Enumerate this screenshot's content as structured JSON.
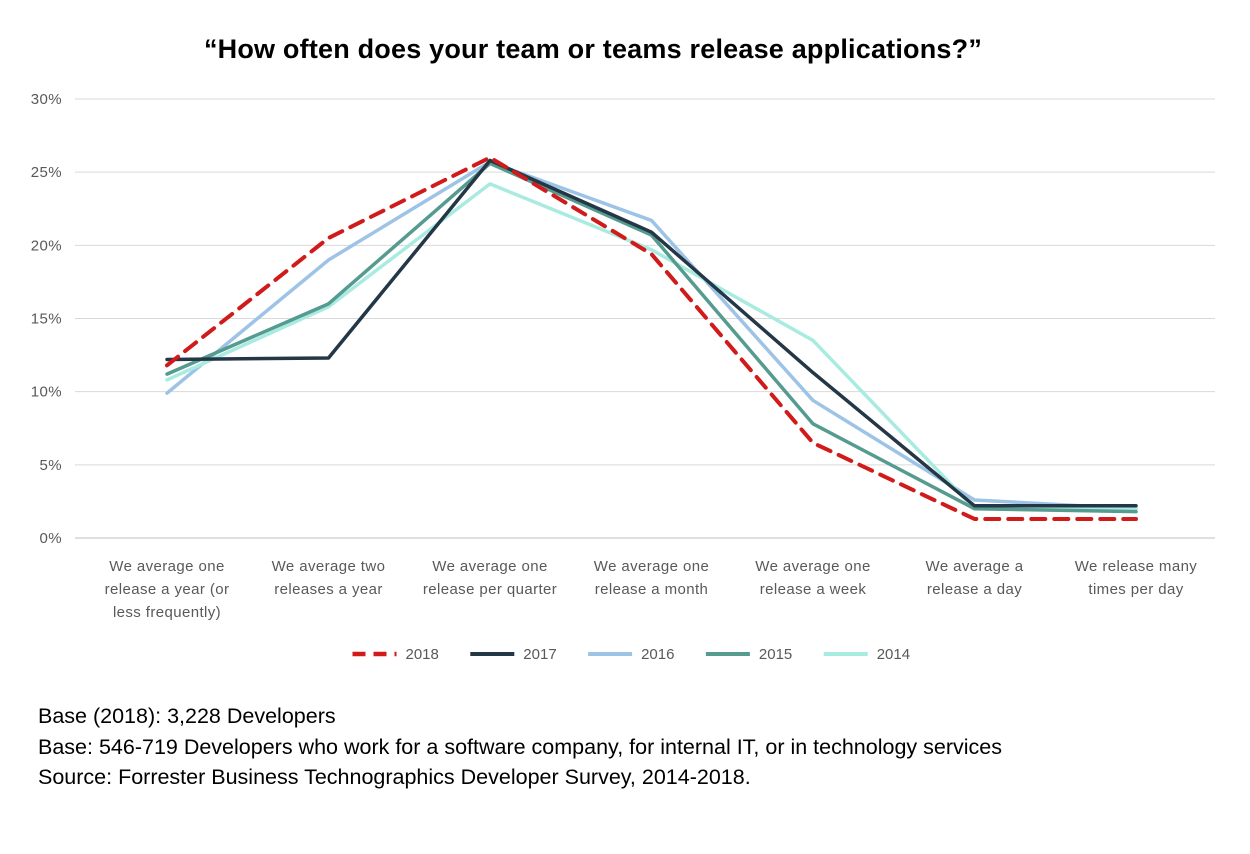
{
  "title": "“How often does your team or teams release applications?”",
  "chart_data": {
    "type": "line",
    "title": "“How often does your team or teams release applications?”",
    "ylim": [
      0,
      30
    ],
    "ytick_step": 5,
    "ytick_labels": [
      "0%",
      "5%",
      "10%",
      "15%",
      "20%",
      "25%",
      "30%"
    ],
    "grid": "horizontal",
    "legend_position": "bottom",
    "categories": [
      [
        "We average one",
        "release a year (or",
        "less frequently)"
      ],
      [
        "We average two",
        "releases a year"
      ],
      [
        "We average one",
        "release per quarter"
      ],
      [
        "We average one",
        "release a month"
      ],
      [
        "We average one",
        "release a week"
      ],
      [
        "We average a",
        "release a day"
      ],
      [
        "We release many",
        "times per day"
      ]
    ],
    "series": [
      {
        "name": "2018",
        "color": "#d11a1a",
        "dashed": true,
        "values": [
          11.8,
          20.5,
          26.0,
          19.4,
          6.5,
          1.3,
          1.3
        ]
      },
      {
        "name": "2017",
        "color": "#243746",
        "dashed": false,
        "values": [
          12.2,
          12.3,
          25.8,
          20.9,
          11.3,
          2.2,
          2.2
        ]
      },
      {
        "name": "2016",
        "color": "#9dc3e6",
        "dashed": false,
        "values": [
          9.9,
          19.0,
          25.7,
          21.7,
          9.4,
          2.6,
          2.0
        ]
      },
      {
        "name": "2015",
        "color": "#569b8f",
        "dashed": false,
        "values": [
          11.2,
          16.0,
          25.6,
          20.7,
          7.8,
          2.0,
          1.8
        ]
      },
      {
        "name": "2014",
        "color": "#a9ebe1",
        "dashed": false,
        "values": [
          10.8,
          15.8,
          24.2,
          19.7,
          13.5,
          2.0,
          2.0
        ]
      }
    ],
    "draw_order": [
      2,
      4,
      3,
      1,
      0
    ]
  },
  "footer": {
    "line1": "Base (2018): 3,228 Developers",
    "line2": "Base: 546-719  Developers who work for a software company, for internal IT, or in technology services",
    "line3": "Source: Forrester Business Technographics Developer Survey, 2014-2018."
  }
}
